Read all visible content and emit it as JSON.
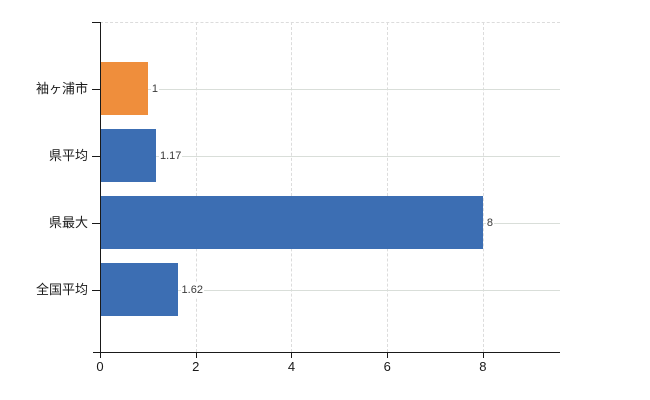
{
  "chart_data": {
    "type": "bar",
    "orientation": "horizontal",
    "title": "",
    "xlabel": "",
    "ylabel": "",
    "categories": [
      "袖ヶ浦市",
      "県平均",
      "県最大",
      "全国平均"
    ],
    "values": [
      1,
      1.17,
      8,
      1.62
    ],
    "value_labels": [
      "1",
      "1.17",
      "8",
      "1.62"
    ],
    "bar_colors": [
      "#ef8e3c",
      "#3c6eb3",
      "#3c6eb3",
      "#3c6eb3"
    ],
    "x_ticks": [
      0,
      2,
      4,
      6,
      8
    ],
    "x_tick_labels": [
      "0",
      "2",
      "4",
      "6",
      "8"
    ],
    "xlim": [
      0,
      9.61
    ],
    "grid": {
      "vertical_dashed_at": [
        2,
        4,
        6,
        8
      ],
      "horizontal_row_lines": true,
      "top_border_dashed": true
    },
    "legend": null,
    "colors": {
      "axis": "#1a1a1a",
      "grid_vertical": "#dcdcdc",
      "grid_horizontal": "#d9ded9",
      "value_text": "#3a3a3a",
      "tick_text": "#1a1a1a",
      "background": "#ffffff"
    }
  }
}
